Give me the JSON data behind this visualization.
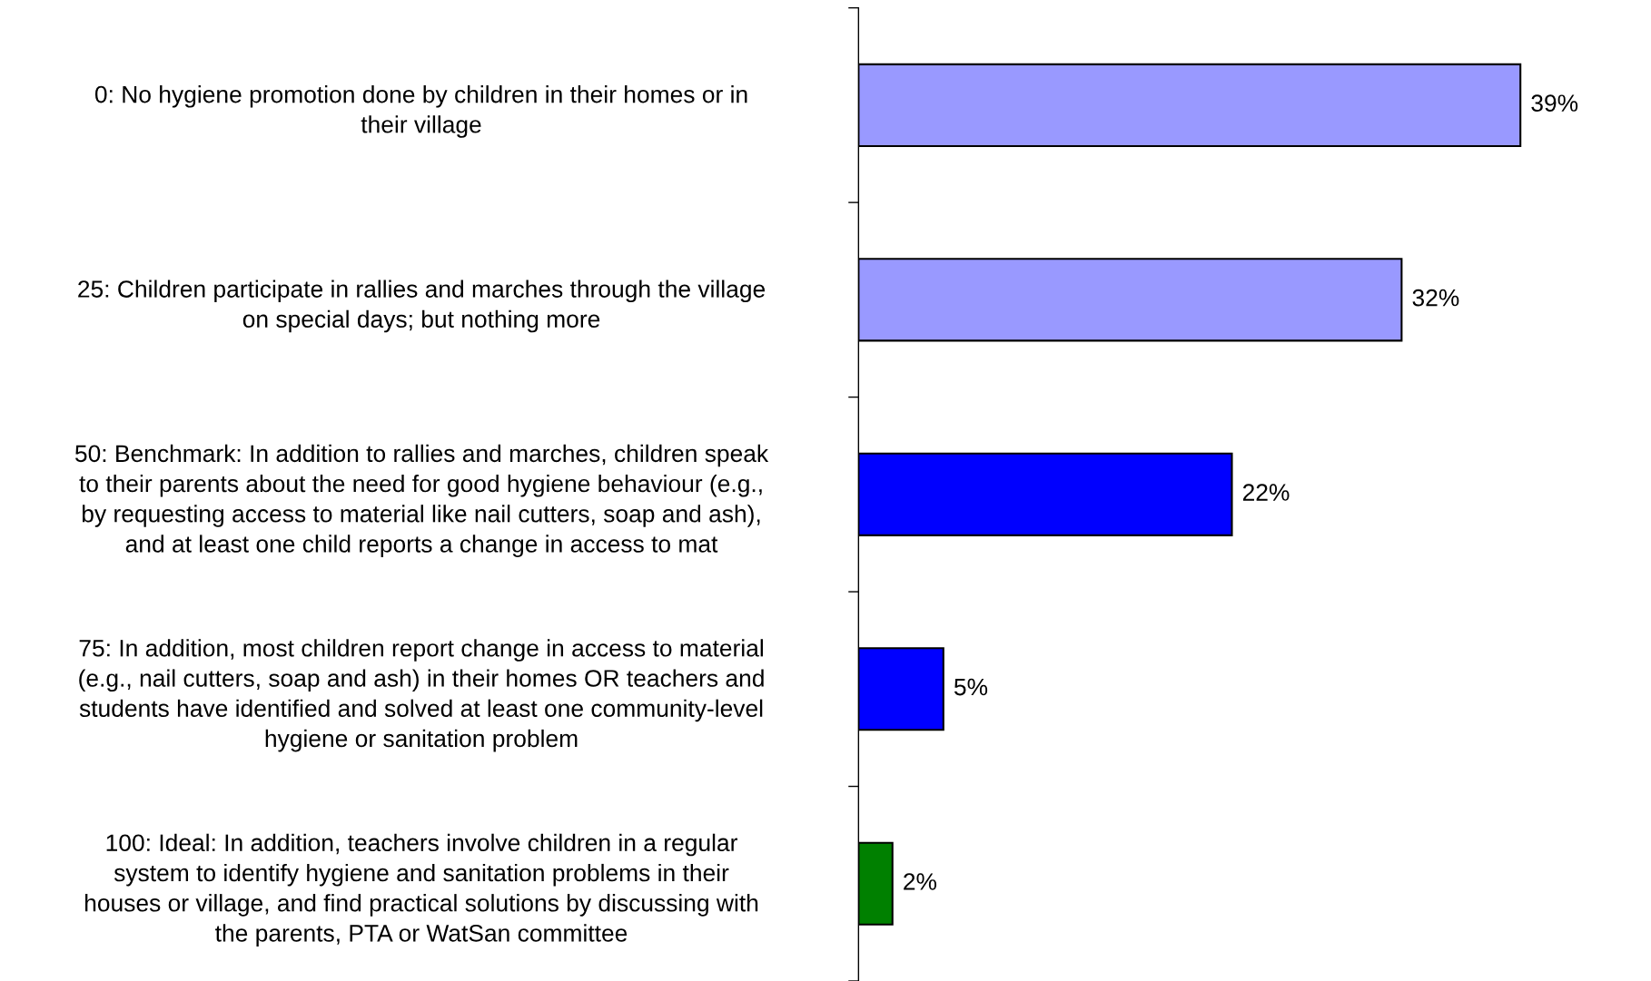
{
  "chart_data": {
    "type": "bar",
    "orientation": "horizontal",
    "categories": [
      "0: No hygiene promotion done by children in their homes or in\ntheir village",
      "25: Children participate in rallies and marches through the village\non special days; but nothing more",
      "50: Benchmark: In addition to rallies and marches, children speak\nto their parents about the need for good hygiene behaviour (e.g.,\nby requesting access to material like nail cutters, soap and ash),\nand at least one child reports a change in access to mat",
      "75: In addition, most children report change in access to material\n(e.g., nail cutters, soap and ash) in their homes OR teachers and\nstudents have identified and solved at least one community-level\nhygiene or sanitation problem",
      "100: Ideal: In addition, teachers involve children in a regular\nsystem to identify hygiene and sanitation problems in their\nhouses or village, and find practical solutions by discussing with\nthe parents, PTA or WatSan committee"
    ],
    "values": [
      39,
      32,
      22,
      5,
      2
    ],
    "colors": [
      "#9999ff",
      "#9999ff",
      "#0000ff",
      "#0000ff",
      "#008000"
    ],
    "value_labels": [
      "39%",
      "32%",
      "22%",
      "5%",
      "2%"
    ],
    "grid": false,
    "legend": false
  }
}
